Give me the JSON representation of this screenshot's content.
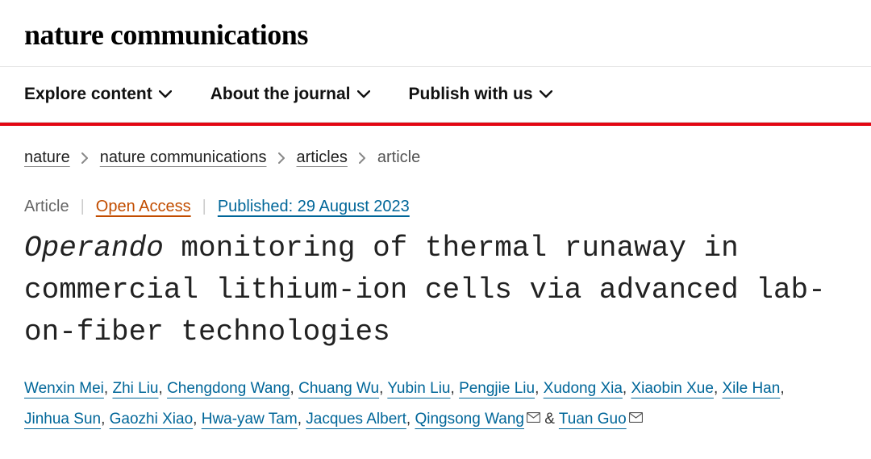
{
  "header": {
    "logo": "nature communications"
  },
  "nav": {
    "items": [
      {
        "label": "Explore content"
      },
      {
        "label": "About the journal"
      },
      {
        "label": "Publish with us"
      }
    ]
  },
  "breadcrumb": {
    "items": [
      {
        "label": "nature",
        "link": true
      },
      {
        "label": "nature communications",
        "link": true
      },
      {
        "label": "articles",
        "link": true
      },
      {
        "label": "article",
        "link": false
      }
    ]
  },
  "meta": {
    "type": "Article",
    "open_access": "Open Access",
    "published": "Published: 29 August 2023"
  },
  "title": {
    "italic": "Operando",
    "rest": " monitoring of thermal runaway in commercial lithium-ion cells via advanced lab-on-fiber technologies"
  },
  "authors": [
    {
      "name": "Wenxin Mei",
      "mail": false
    },
    {
      "name": "Zhi Liu",
      "mail": false
    },
    {
      "name": "Chengdong Wang",
      "mail": false
    },
    {
      "name": "Chuang Wu",
      "mail": false
    },
    {
      "name": "Yubin Liu",
      "mail": false
    },
    {
      "name": "Pengjie Liu",
      "mail": false
    },
    {
      "name": "Xudong Xia",
      "mail": false
    },
    {
      "name": "Xiaobin Xue",
      "mail": false
    },
    {
      "name": "Xile Han",
      "mail": false
    },
    {
      "name": "Jinhua Sun",
      "mail": false
    },
    {
      "name": "Gaozhi Xiao",
      "mail": false
    },
    {
      "name": "Hwa-yaw Tam",
      "mail": false
    },
    {
      "name": "Jacques Albert",
      "mail": false
    },
    {
      "name": "Qingsong Wang",
      "mail": true
    },
    {
      "name": "Tuan Guo",
      "mail": true
    }
  ],
  "colors": {
    "accent_red": "#e30613",
    "link_blue": "#006699",
    "open_access": "#c24d00"
  }
}
